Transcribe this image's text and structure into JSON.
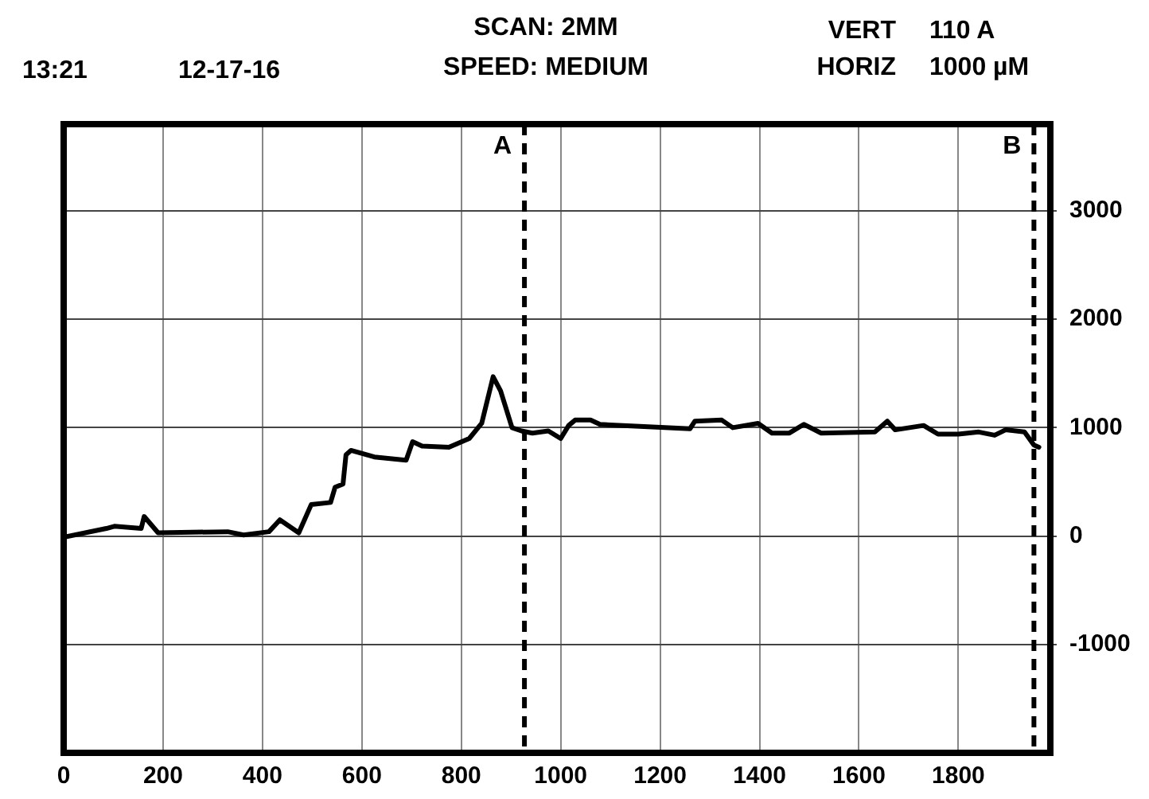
{
  "chart_data": {
    "type": "line",
    "annotations": [
      "13:21",
      "12-17-16",
      "SCAN: 2MM",
      "SPEED: MEDIUM",
      "VERT",
      "110 A",
      "HORIZ",
      "1000 µM"
    ],
    "series": [
      {
        "color": "#000000",
        "x": [
          0,
          86,
          102,
          156,
          162,
          190,
          330,
          362,
          413,
          435,
          473,
          498,
          537,
          546,
          562,
          568,
          578,
          625,
          689,
          702,
          721,
          775,
          816,
          841,
          864,
          879,
          902,
          921,
          943,
          975,
          1000,
          1016,
          1029,
          1060,
          1079,
          1260,
          1270,
          1324,
          1346,
          1397,
          1425,
          1460,
          1489,
          1524,
          1632,
          1657,
          1673,
          1730,
          1759,
          1800,
          1841,
          1873,
          1895,
          1933,
          1952,
          1962
        ],
        "values": [
          -10,
          70,
          90,
          70,
          180,
          30,
          40,
          10,
          40,
          150,
          30,
          290,
          310,
          450,
          480,
          750,
          790,
          730,
          700,
          870,
          830,
          820,
          900,
          1040,
          1470,
          1340,
          1000,
          970,
          950,
          970,
          900,
          1020,
          1070,
          1070,
          1030,
          990,
          1060,
          1070,
          1000,
          1040,
          950,
          950,
          1030,
          950,
          960,
          1060,
          980,
          1020,
          940,
          940,
          960,
          930,
          980,
          960,
          840,
          820
        ]
      }
    ],
    "xlim": [
      0,
      1985
    ],
    "xticks": [
      0,
      200,
      400,
      600,
      800,
      1000,
      1200,
      1400,
      1600,
      1800
    ],
    "ylim": [
      -2000,
      3800
    ],
    "yticks": [
      -1000,
      0,
      1000,
      2000,
      3000
    ],
    "grid": true,
    "legend": false,
    "marker": "none",
    "line_style": "solid",
    "ref_lines": [
      {
        "axis": "x",
        "value": 927,
        "label": "A",
        "line_style": "dashed",
        "color": "#000000"
      },
      {
        "axis": "x",
        "value": 1952,
        "label": "B",
        "line_style": "dashed",
        "color": "#000000"
      }
    ]
  }
}
